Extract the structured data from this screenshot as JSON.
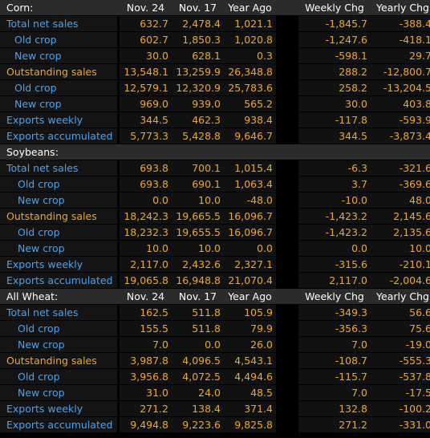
{
  "sections": [
    {
      "name": "Corn:",
      "headers": [
        "Nov. 24",
        "Nov. 17",
        "Year Ago",
        "Weekly Chg",
        "Yearly Chg"
      ],
      "rows": [
        {
          "label": "Total net sales",
          "indent": 0,
          "color": "blue",
          "values": [
            "632.7",
            "2,478.4",
            "1,021.1",
            "-1,845.7",
            "-388.4"
          ]
        },
        {
          "label": "Old crop",
          "indent": 1,
          "color": "blue",
          "values": [
            "602.7",
            "1,850.3",
            "1,020.8",
            "-1,247.6",
            "-418.1"
          ]
        },
        {
          "label": "New crop",
          "indent": 1,
          "color": "blue",
          "values": [
            "30.0",
            "628.1",
            "0.3",
            "-598.1",
            "29.7"
          ]
        },
        {
          "label": "Outstanding sales",
          "indent": 0,
          "color": "orange",
          "values": [
            "13,548.1",
            "13,259.9",
            "26,348.8",
            "288.2",
            "-12,800.7"
          ]
        },
        {
          "label": "Old crop",
          "indent": 1,
          "color": "blue",
          "values": [
            "12,579.1",
            "12,320.9",
            "25,783.6",
            "258.2",
            "-13,204.5"
          ]
        },
        {
          "label": "New crop",
          "indent": 1,
          "color": "blue",
          "values": [
            "969.0",
            "939.0",
            "565.2",
            "30.0",
            "403.8"
          ]
        },
        {
          "label": "Exports weekly",
          "indent": 0,
          "color": "blue",
          "values": [
            "344.5",
            "462.3",
            "938.4",
            "-117.8",
            "-593.9"
          ]
        },
        {
          "label": "Exports accumulated",
          "indent": 0,
          "color": "blue",
          "values": [
            "5,773.3",
            "5,428.8",
            "9,646.7",
            "344.5",
            "-3,873.4"
          ]
        }
      ]
    },
    {
      "name": "Soybeans:",
      "headers": null,
      "rows": [
        {
          "label": "Total net sales",
          "indent": 0,
          "color": "blue",
          "values": [
            "693.8",
            "700.1",
            "1,015.4",
            "-6.3",
            "-321.6"
          ]
        },
        {
          "label": "Old crop",
          "indent": 2,
          "color": "blue",
          "values": [
            "693.8",
            "690.1",
            "1,063.4",
            "3.7",
            "-369.6"
          ]
        },
        {
          "label": "New crop",
          "indent": 2,
          "color": "blue",
          "values": [
            "0.0",
            "10.0",
            "-48.0",
            "-10.0",
            "48.0"
          ]
        },
        {
          "label": "Outstanding sales",
          "indent": 0,
          "color": "orange",
          "values": [
            "18,242.3",
            "19,665.5",
            "16,096.7",
            "-1,423.2",
            "2,145.6"
          ]
        },
        {
          "label": "Old crop",
          "indent": 2,
          "color": "blue",
          "values": [
            "18,232.3",
            "19,655.5",
            "16,096.7",
            "-1,423.2",
            "2,135.6"
          ]
        },
        {
          "label": "New crop",
          "indent": 2,
          "color": "blue",
          "values": [
            "10.0",
            "10.0",
            "0.0",
            "0.0",
            "10.0"
          ]
        },
        {
          "label": "Exports weekly",
          "indent": 0,
          "color": "blue",
          "values": [
            "2,117.0",
            "2,432.6",
            "2,327.1",
            "-315.6",
            "-210.1"
          ]
        },
        {
          "label": "Exports accumulated",
          "indent": 0,
          "color": "blue",
          "values": [
            "19,065.8",
            "16,948.8",
            "21,070.4",
            "2,117.0",
            "-2,004.6"
          ]
        }
      ]
    },
    {
      "name": "All Wheat:",
      "headers": [
        "Nov. 24",
        "Nov. 17",
        "Year Ago",
        "Weekly Chg",
        "Yearly Chg"
      ],
      "rows": [
        {
          "label": "Total net sales",
          "indent": 0,
          "color": "blue",
          "values": [
            "162.5",
            "511.8",
            "105.9",
            "-349.3",
            "56.6"
          ]
        },
        {
          "label": "Old crop",
          "indent": 2,
          "color": "blue",
          "values": [
            "155.5",
            "511.8",
            "79.9",
            "-356.3",
            "75.6"
          ]
        },
        {
          "label": "New crop",
          "indent": 2,
          "color": "blue",
          "values": [
            "7.0",
            "0.0",
            "26.0",
            "7.0",
            "-19.0"
          ]
        },
        {
          "label": "Outstanding sales",
          "indent": 0,
          "color": "orange",
          "values": [
            "3,987.8",
            "4,096.5",
            "4,543.1",
            "-108.7",
            "-555.3"
          ]
        },
        {
          "label": "Old crop",
          "indent": 2,
          "color": "blue",
          "values": [
            "3,956.8",
            "4,072.5",
            "4,494.6",
            "-115.7",
            "-537.8"
          ]
        },
        {
          "label": "New crop",
          "indent": 2,
          "color": "blue",
          "values": [
            "31.0",
            "24.0",
            "48.5",
            "7.0",
            "-17.5"
          ]
        },
        {
          "label": "Exports weekly",
          "indent": 0,
          "color": "blue",
          "values": [
            "271.2",
            "138.4",
            "371.4",
            "132.8",
            "-100.2"
          ]
        },
        {
          "label": "Exports accumulated",
          "indent": 0,
          "color": "blue",
          "values": [
            "9,494.8",
            "9,223.6",
            "9,825.8",
            "271.2",
            "-331.0"
          ]
        }
      ]
    }
  ]
}
